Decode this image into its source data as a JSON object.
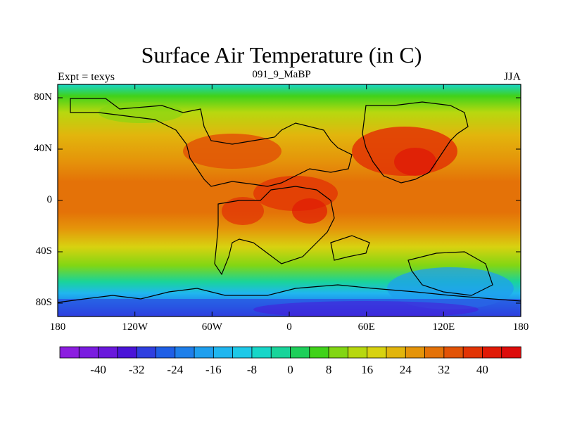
{
  "title": "Surface Air Temperature (in C)",
  "subtitle_left": "Expt = texys",
  "subtitle_center": "091_9_MaBP",
  "subtitle_right": "JJA",
  "x_ticks": [
    "180",
    "120W",
    "60W",
    "0",
    "60E",
    "120E",
    "180"
  ],
  "y_ticks": [
    "80N",
    "40N",
    "0",
    "40S",
    "80S"
  ],
  "colorbar": {
    "labels": [
      "-40",
      "-32",
      "-24",
      "-16",
      "-8",
      "0",
      "8",
      "16",
      "24",
      "32",
      "40"
    ],
    "colors": [
      "#8c1de0",
      "#7a1ce0",
      "#6a18dc",
      "#4a14d8",
      "#2f3fe0",
      "#1f5fe6",
      "#1e7fea",
      "#1f9fee",
      "#20b6ef",
      "#1ec9e8",
      "#17d6c8",
      "#19d49a",
      "#1ecf5a",
      "#40d21a",
      "#82d613",
      "#b7d80f",
      "#d8d210",
      "#e2b50d",
      "#e5940a",
      "#e47208",
      "#e25306",
      "#e23405",
      "#e01a06",
      "#dd0c0b"
    ]
  },
  "chart_data": {
    "type": "heatmap",
    "variable": "Surface Air Temperature (in C)",
    "experiment": "texys",
    "age": "091_9_MaBP",
    "season": "JJA",
    "x_range": [
      -180,
      180
    ],
    "y_range": [
      -90,
      90
    ],
    "colorbar_levels": [
      -44,
      48,
      4
    ],
    "zonal_means": [
      {
        "lat": 80,
        "value": 4
      },
      {
        "lat": 60,
        "value": 14
      },
      {
        "lat": 40,
        "value": 26
      },
      {
        "lat": 20,
        "value": 32
      },
      {
        "lat": 0,
        "value": 31
      },
      {
        "lat": -20,
        "value": 27
      },
      {
        "lat": -40,
        "value": 18
      },
      {
        "lat": -60,
        "value": 6
      },
      {
        "lat": -80,
        "value": -20
      }
    ]
  }
}
